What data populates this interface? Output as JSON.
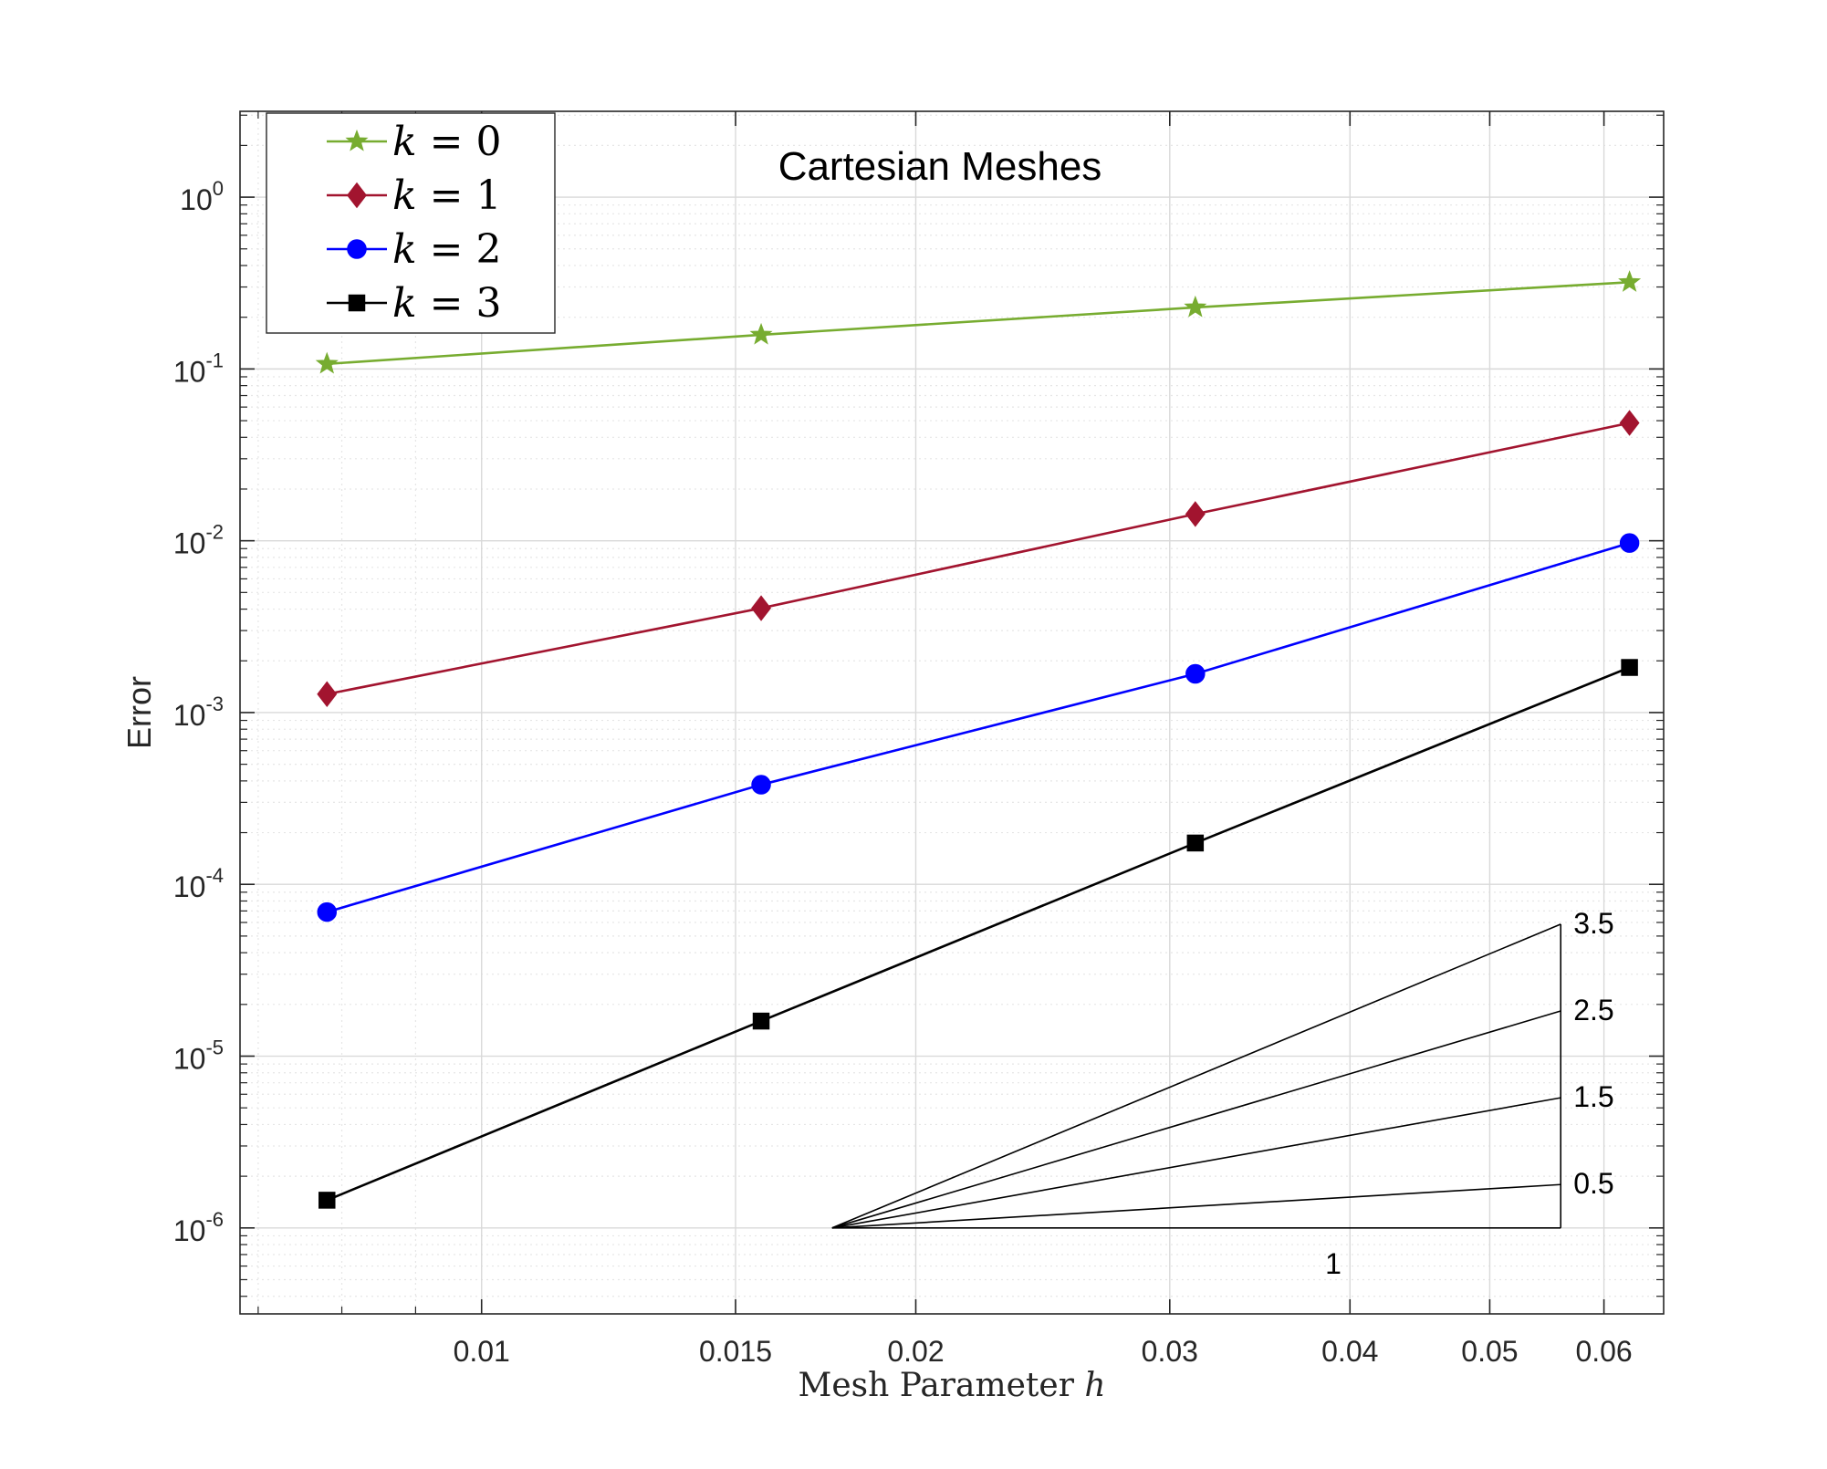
{
  "chart_data": {
    "type": "line",
    "title": "Cartesian Meshes",
    "xlabel": "Mesh Parameter ",
    "xlabel_var": "h",
    "ylabel": "Error",
    "xscale": "log",
    "yscale": "log",
    "xlim": [
      0.0068,
      0.066
    ],
    "ylim": [
      3.16e-07,
      3.16
    ],
    "grid": true,
    "legend_position": "top-left",
    "x_ticks": [
      {
        "value": 0.01,
        "label": "0.01"
      },
      {
        "value": 0.015,
        "label": "0.015"
      },
      {
        "value": 0.02,
        "label": "0.02"
      },
      {
        "value": 0.03,
        "label": "0.03"
      },
      {
        "value": 0.04,
        "label": "0.04"
      },
      {
        "value": 0.05,
        "label": "0.05"
      },
      {
        "value": 0.06,
        "label": "0.06"
      }
    ],
    "y_ticks": [
      {
        "exp": 0,
        "base": "10",
        "sup": "0"
      },
      {
        "exp": -1,
        "base": "10",
        "sup": "-1"
      },
      {
        "exp": -2,
        "base": "10",
        "sup": "-2"
      },
      {
        "exp": -3,
        "base": "10",
        "sup": "-3"
      },
      {
        "exp": -4,
        "base": "10",
        "sup": "-4"
      },
      {
        "exp": -5,
        "base": "10",
        "sup": "-5"
      },
      {
        "exp": -6,
        "base": "10",
        "sup": "-6"
      }
    ],
    "x": [
      0.0078125,
      0.015625,
      0.03125,
      0.0625
    ],
    "series": [
      {
        "name": "k = 0",
        "legend_var": "k",
        "legend_eq": " = 0",
        "color": "#77ac30",
        "marker": "star",
        "values": [
          0.107,
          0.158,
          0.228,
          0.32
        ]
      },
      {
        "name": "k = 1",
        "legend_var": "k",
        "legend_eq": " = 1",
        "color": "#a2142f",
        "marker": "diamond",
        "values": [
          0.00128,
          0.00405,
          0.0143,
          0.0485
        ]
      },
      {
        "name": "k = 2",
        "legend_var": "k",
        "legend_eq": " = 2",
        "color": "#0000ff",
        "marker": "circle",
        "values": [
          6.9e-05,
          0.00038,
          0.00168,
          0.0097
        ]
      },
      {
        "name": "k = 3",
        "legend_var": "k",
        "legend_eq": " = 3",
        "color": "#000000",
        "marker": "square",
        "values": [
          1.45e-06,
          1.6e-05,
          0.000174,
          0.00183
        ]
      }
    ],
    "slope_triangle": {
      "run_label": "1",
      "x_start": 0.0175,
      "x_end": 0.056,
      "y_base": 1e-06,
      "slopes": [
        {
          "value": 3.5,
          "label": "3.5"
        },
        {
          "value": 2.5,
          "label": "2.5"
        },
        {
          "value": 1.5,
          "label": "1.5"
        },
        {
          "value": 0.5,
          "label": "0.5"
        }
      ]
    }
  }
}
